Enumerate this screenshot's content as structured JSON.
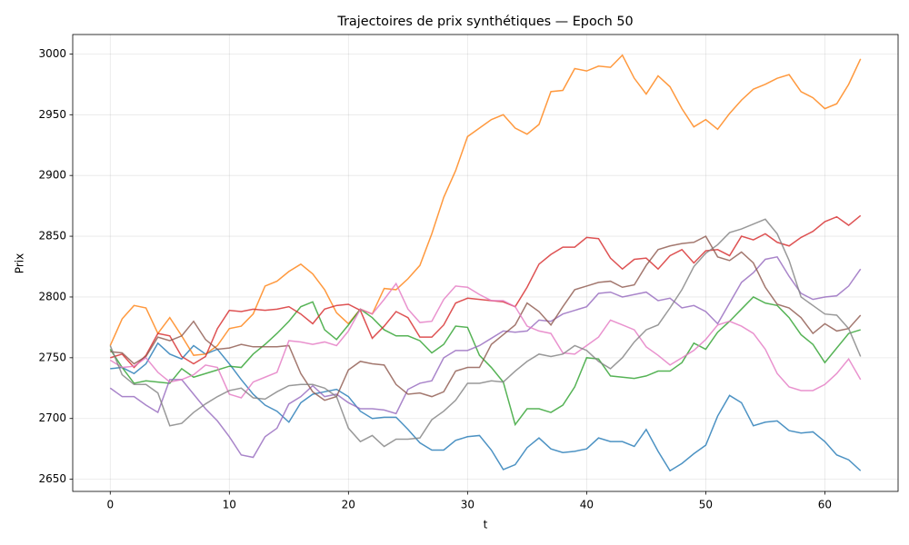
{
  "chart_data": {
    "type": "line",
    "title": "Trajectoires de prix synthétiques — Epoch 50",
    "xlabel": "t",
    "ylabel": "Prix",
    "xlim": [
      -3.15,
      66.15
    ],
    "ylim": [
      2640,
      3016
    ],
    "xticks": [
      0,
      10,
      20,
      30,
      40,
      50,
      60
    ],
    "yticks": [
      2650,
      2700,
      2750,
      2800,
      2850,
      2900,
      2950,
      3000
    ],
    "grid": true,
    "x": [
      0,
      1,
      2,
      3,
      4,
      5,
      6,
      7,
      8,
      9,
      10,
      11,
      12,
      13,
      14,
      15,
      16,
      17,
      18,
      19,
      20,
      21,
      22,
      23,
      24,
      25,
      26,
      27,
      28,
      29,
      30,
      31,
      32,
      33,
      34,
      35,
      36,
      37,
      38,
      39,
      40,
      41,
      42,
      43,
      44,
      45,
      46,
      47,
      48,
      49,
      50,
      51,
      52,
      53,
      54,
      55,
      56,
      57,
      58,
      59,
      60,
      61,
      62,
      63
    ],
    "series": [
      {
        "color": "#1f77b4",
        "values": [
          2741,
          2742,
          2737,
          2745,
          2762,
          2753,
          2749,
          2760,
          2753,
          2757,
          2745,
          2732,
          2720,
          2711,
          2706,
          2697,
          2713,
          2720,
          2722,
          2724,
          2718,
          2706,
          2700,
          2701,
          2701,
          2691,
          2680,
          2674,
          2674,
          2682,
          2685,
          2686,
          2674,
          2658,
          2662,
          2676,
          2684,
          2675,
          2672,
          2673,
          2675,
          2684,
          2681,
          2681,
          2677,
          2691,
          2673,
          2657,
          2663,
          2671,
          2678,
          2702,
          2719,
          2713,
          2694,
          2697,
          2698,
          2690,
          2688,
          2689,
          2681,
          2670,
          2666,
          2657
        ]
      },
      {
        "color": "#ff7f0e",
        "values": [
          2760,
          2782,
          2793,
          2791,
          2770,
          2783,
          2768,
          2752,
          2753,
          2760,
          2774,
          2776,
          2786,
          2809,
          2813,
          2821,
          2827,
          2819,
          2806,
          2787,
          2778,
          2790,
          2786,
          2807,
          2806,
          2815,
          2826,
          2852,
          2882,
          2904,
          2932,
          2939,
          2946,
          2950,
          2939,
          2934,
          2942,
          2969,
          2970,
          2988,
          2986,
          2990,
          2989,
          2999,
          2980,
          2967,
          2982,
          2973,
          2955,
          2940,
          2946,
          2938,
          2951,
          2962,
          2971,
          2975,
          2980,
          2983,
          2969,
          2964,
          2955,
          2959,
          2975,
          2996
        ]
      },
      {
        "color": "#2ca02c",
        "values": [
          2757,
          2742,
          2729,
          2731,
          2730,
          2729,
          2741,
          2734,
          2737,
          2740,
          2743,
          2742,
          2753,
          2761,
          2770,
          2780,
          2792,
          2796,
          2773,
          2765,
          2777,
          2790,
          2783,
          2773,
          2768,
          2768,
          2764,
          2754,
          2761,
          2776,
          2775,
          2752,
          2742,
          2730,
          2695,
          2708,
          2708,
          2705,
          2711,
          2726,
          2750,
          2749,
          2735,
          2734,
          2733,
          2735,
          2739,
          2739,
          2746,
          2762,
          2757,
          2771,
          2780,
          2790,
          2800,
          2795,
          2793,
          2783,
          2769,
          2761,
          2746,
          2758,
          2770,
          2773
        ]
      },
      {
        "color": "#d62728",
        "values": [
          2750,
          2753,
          2742,
          2752,
          2770,
          2768,
          2751,
          2745,
          2751,
          2774,
          2789,
          2788,
          2790,
          2789,
          2790,
          2792,
          2786,
          2778,
          2790,
          2793,
          2794,
          2789,
          2766,
          2776,
          2788,
          2783,
          2767,
          2767,
          2777,
          2795,
          2799,
          2798,
          2797,
          2796,
          2792,
          2808,
          2827,
          2835,
          2841,
          2841,
          2849,
          2848,
          2832,
          2823,
          2831,
          2832,
          2823,
          2834,
          2839,
          2828,
          2838,
          2839,
          2834,
          2850,
          2847,
          2852,
          2845,
          2842,
          2849,
          2854,
          2862,
          2866,
          2859,
          2867
        ]
      },
      {
        "color": "#9467bd",
        "values": [
          2725,
          2718,
          2718,
          2711,
          2705,
          2732,
          2732,
          2720,
          2708,
          2698,
          2685,
          2670,
          2668,
          2685,
          2692,
          2712,
          2718,
          2727,
          2718,
          2720,
          2713,
          2708,
          2708,
          2707,
          2704,
          2724,
          2729,
          2731,
          2750,
          2756,
          2756,
          2760,
          2766,
          2772,
          2771,
          2772,
          2781,
          2780,
          2786,
          2789,
          2792,
          2803,
          2804,
          2800,
          2802,
          2804,
          2797,
          2799,
          2791,
          2793,
          2788,
          2778,
          2795,
          2812,
          2820,
          2831,
          2833,
          2817,
          2803,
          2798,
          2800,
          2801,
          2809,
          2823
        ]
      },
      {
        "color": "#8c564b",
        "values": [
          2755,
          2754,
          2745,
          2751,
          2767,
          2764,
          2768,
          2780,
          2765,
          2757,
          2758,
          2761,
          2759,
          2759,
          2759,
          2760,
          2737,
          2722,
          2715,
          2718,
          2740,
          2747,
          2745,
          2744,
          2728,
          2720,
          2721,
          2718,
          2722,
          2739,
          2742,
          2742,
          2761,
          2769,
          2777,
          2795,
          2788,
          2777,
          2792,
          2806,
          2809,
          2812,
          2813,
          2808,
          2810,
          2826,
          2839,
          2842,
          2844,
          2845,
          2850,
          2833,
          2830,
          2837,
          2828,
          2808,
          2794,
          2791,
          2783,
          2770,
          2778,
          2772,
          2774,
          2785
        ]
      },
      {
        "color": "#e377c2",
        "values": [
          2748,
          2742,
          2743,
          2750,
          2738,
          2730,
          2732,
          2736,
          2744,
          2742,
          2720,
          2717,
          2730,
          2734,
          2738,
          2764,
          2763,
          2761,
          2763,
          2760,
          2772,
          2790,
          2786,
          2798,
          2811,
          2790,
          2779,
          2780,
          2798,
          2809,
          2808,
          2802,
          2797,
          2797,
          2792,
          2776,
          2772,
          2770,
          2754,
          2753,
          2760,
          2767,
          2781,
          2777,
          2773,
          2759,
          2752,
          2744,
          2750,
          2756,
          2765,
          2777,
          2780,
          2776,
          2770,
          2757,
          2737,
          2726,
          2723,
          2723,
          2728,
          2737,
          2749,
          2732
        ]
      },
      {
        "color": "#7f7f7f",
        "values": [
          2760,
          2736,
          2728,
          2728,
          2721,
          2694,
          2696,
          2705,
          2712,
          2718,
          2723,
          2725,
          2717,
          2716,
          2722,
          2727,
          2728,
          2728,
          2725,
          2718,
          2692,
          2681,
          2686,
          2677,
          2683,
          2683,
          2684,
          2699,
          2706,
          2715,
          2729,
          2729,
          2731,
          2730,
          2739,
          2747,
          2753,
          2751,
          2753,
          2760,
          2756,
          2747,
          2741,
          2750,
          2763,
          2773,
          2777,
          2791,
          2806,
          2825,
          2836,
          2843,
          2853,
          2856,
          2860,
          2864,
          2852,
          2830,
          2800,
          2793,
          2786,
          2785,
          2774,
          2751
        ]
      }
    ]
  }
}
